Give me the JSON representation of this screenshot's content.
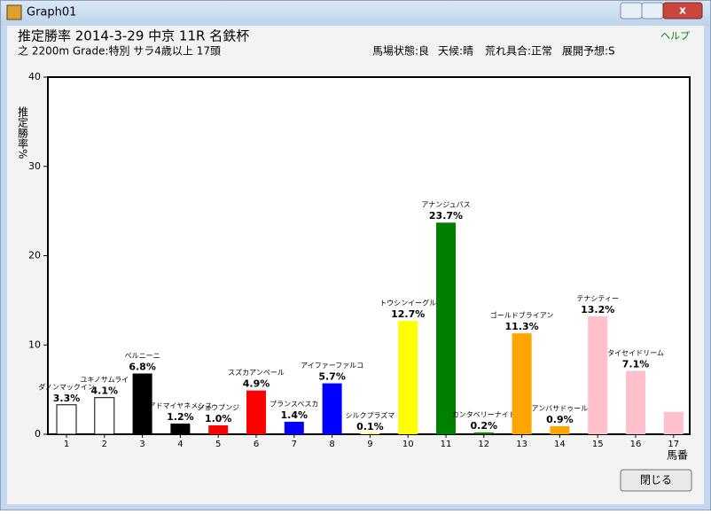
{
  "window": {
    "title": "Graph01",
    "help": "ヘルプ",
    "close_button": "閉じる"
  },
  "header": {
    "title": "推定勝率 2014-3-29 中京 11R 名鉄杯",
    "subtitle": "之 2200m Grade:特別 サラ4歳以上 17頭",
    "conditions": [
      "馬場状態:良",
      "天候:晴",
      "荒れ具合:正常",
      "展開予想:S"
    ]
  },
  "chart_data": {
    "type": "bar",
    "y_label": "推定勝率%",
    "x_label": "馬番",
    "categories": [
      "1",
      "2",
      "3",
      "4",
      "5",
      "6",
      "7",
      "8",
      "9",
      "10",
      "11",
      "12",
      "13",
      "14",
      "15",
      "16",
      "17"
    ],
    "names": [
      "ダノンマックイン",
      "ユキノサムライ",
      "ベルニーニ",
      "アドマイヤネメシス",
      "ジョウブンジ",
      "スズカアンペール",
      "プランスペスカ",
      "アイファーファルコ",
      "シルクプラズマ",
      "トウシンイーグル",
      "アナンジュパス",
      "カンタベリーナイト",
      "ゴールドブライアン",
      "アンバサドゥール",
      "テナシティー",
      "タイセイドリーム",
      null
    ],
    "values": [
      3.3,
      4.1,
      6.8,
      1.2,
      1.0,
      4.9,
      1.4,
      5.7,
      0.1,
      12.7,
      23.7,
      0.2,
      11.3,
      0.9,
      13.2,
      7.1,
      2.5
    ],
    "value_labels": [
      "3.3%",
      "4.1%",
      "6.8%",
      "1.2%",
      "1.0%",
      "4.9%",
      "1.4%",
      "5.7%",
      "0.1%",
      "12.7%",
      "23.7%",
      "0.2%",
      "11.3%",
      "0.9%",
      "13.2%",
      "7.1%",
      null
    ],
    "colors": [
      "#ffffff",
      "#ffffff",
      "#000000",
      "#000000",
      "#ff0000",
      "#ff0000",
      "#0000ff",
      "#0000ff",
      "#ffff00",
      "#ffff00",
      "#008000",
      "#008000",
      "#ffa500",
      "#ffa500",
      "#ffc0cb",
      "#ffc0cb",
      "#ffc0cb"
    ],
    "ylim": [
      0,
      40
    ],
    "yticks": [
      0,
      10,
      20,
      30,
      40
    ],
    "grid": false
  }
}
